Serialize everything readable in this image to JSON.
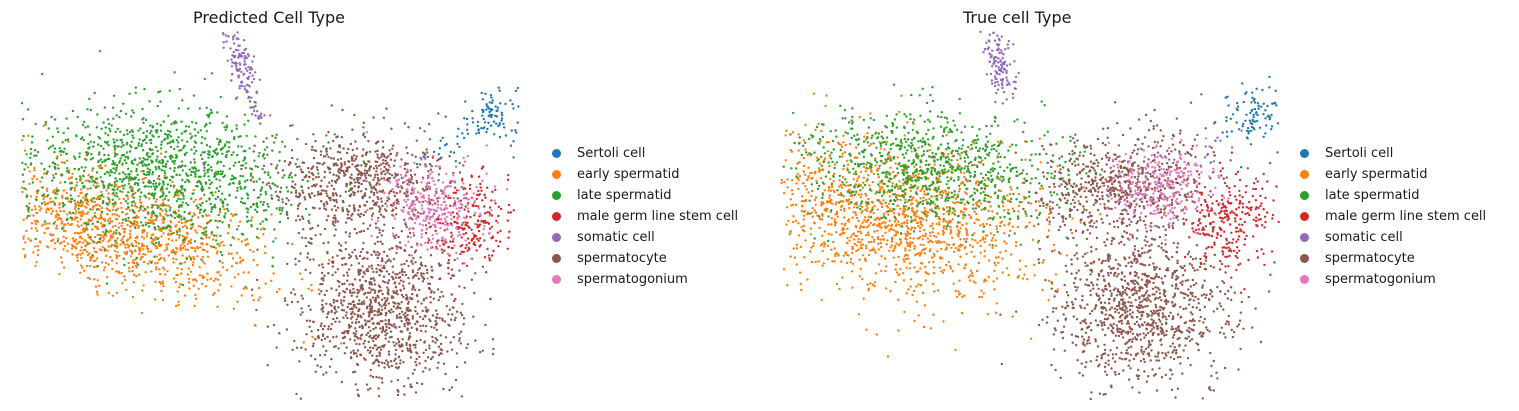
{
  "chart_data": [
    {
      "type": "scatter",
      "title": "Predicted Cell Type",
      "xlabel": "",
      "ylabel": "",
      "grid": false,
      "axes_visible": false,
      "legend_position": "right",
      "series": [
        {
          "name": "Sertoli cell",
          "color": "#1f77b4",
          "clusters": [
            {
              "cx": 9.5,
              "cy": 6.2,
              "sx": 0.38,
              "sy": 0.42,
              "n": 110,
              "rot": 0.3
            },
            {
              "cx": 8.4,
              "cy": 5.2,
              "sx": 0.35,
              "sy": 0.12,
              "n": 18,
              "rot": 0.5
            }
          ]
        },
        {
          "name": "early spermatid",
          "color": "#ff7f0e",
          "clusters": [
            {
              "cx": 2.0,
              "cy": 3.1,
              "sx": 1.55,
              "sy": 0.7,
              "n": 1200,
              "rot": -0.38
            }
          ]
        },
        {
          "name": "late spermatid",
          "color": "#2ca02c",
          "clusters": [
            {
              "cx": 2.8,
              "cy": 4.6,
              "sx": 1.55,
              "sy": 0.95,
              "n": 1300,
              "rot": -0.15
            }
          ]
        },
        {
          "name": "male germ line stem cell",
          "color": "#d62728",
          "clusters": [
            {
              "cx": 9.0,
              "cy": 3.3,
              "sx": 0.45,
              "sy": 0.6,
              "n": 210,
              "rot": 0
            }
          ]
        },
        {
          "name": "somatic cell",
          "color": "#9467bd",
          "clusters": [
            {
              "cx": 4.4,
              "cy": 7.6,
              "sx": 0.13,
              "sy": 0.48,
              "n": 120,
              "rot": 0.2
            },
            {
              "cx": 4.8,
              "cy": 6.2,
              "sx": 0.05,
              "sy": 0.05,
              "n": 8,
              "rot": 0
            }
          ]
        },
        {
          "name": "spermatocyte",
          "color": "#8c564b",
          "clusters": [
            {
              "cx": 6.8,
              "cy": 4.4,
              "sx": 0.9,
              "sy": 0.65,
              "n": 650,
              "rot": 0.1
            },
            {
              "cx": 7.2,
              "cy": 1.0,
              "sx": 0.85,
              "sy": 1.1,
              "n": 1050,
              "rot": 0
            }
          ]
        },
        {
          "name": "spermatogonium",
          "color": "#e377c2",
          "clusters": [
            {
              "cx": 8.2,
              "cy": 3.7,
              "sx": 0.55,
              "sy": 0.6,
              "n": 300,
              "rot": 0.3
            }
          ]
        }
      ],
      "xlim": [
        0,
        10
      ],
      "ylim": [
        -1.5,
        8.5
      ]
    },
    {
      "type": "scatter",
      "title": "True cell Type",
      "xlabel": "",
      "ylabel": "",
      "grid": false,
      "axes_visible": false,
      "legend_position": "right",
      "series": [
        {
          "name": "Sertoli cell",
          "color": "#1f77b4",
          "clusters": [
            {
              "cx": 9.5,
              "cy": 6.2,
              "sx": 0.38,
              "sy": 0.42,
              "n": 110,
              "rot": 0.3
            }
          ]
        },
        {
          "name": "early spermatid",
          "color": "#ff7f0e",
          "clusters": [
            {
              "cx": 2.2,
              "cy": 3.5,
              "sx": 1.6,
              "sy": 1.0,
              "n": 1500,
              "rot": -0.3
            }
          ]
        },
        {
          "name": "late spermatid",
          "color": "#2ca02c",
          "clusters": [
            {
              "cx": 3.0,
              "cy": 4.8,
              "sx": 1.3,
              "sy": 0.75,
              "n": 900,
              "rot": -0.1
            }
          ]
        },
        {
          "name": "male germ line stem cell",
          "color": "#d62728",
          "clusters": [
            {
              "cx": 9.0,
              "cy": 3.3,
              "sx": 0.5,
              "sy": 0.65,
              "n": 260,
              "rot": 0
            }
          ]
        },
        {
          "name": "somatic cell",
          "color": "#9467bd",
          "clusters": [
            {
              "cx": 4.4,
              "cy": 7.6,
              "sx": 0.13,
              "sy": 0.48,
              "n": 120,
              "rot": 0.2
            },
            {
              "cx": 8.4,
              "cy": 5.2,
              "sx": 0.35,
              "sy": 0.12,
              "n": 18,
              "rot": 0.5
            }
          ]
        },
        {
          "name": "spermatocyte",
          "color": "#8c564b",
          "clusters": [
            {
              "cx": 6.8,
              "cy": 4.3,
              "sx": 0.9,
              "sy": 0.65,
              "n": 650,
              "rot": 0.1
            },
            {
              "cx": 7.2,
              "cy": 1.0,
              "sx": 0.85,
              "sy": 1.1,
              "n": 1050,
              "rot": 0
            }
          ]
        },
        {
          "name": "spermatogonium",
          "color": "#e377c2",
          "clusters": [
            {
              "cx": 7.6,
              "cy": 4.3,
              "sx": 0.55,
              "sy": 0.5,
              "n": 280,
              "rot": 0.3
            }
          ]
        }
      ],
      "xlim": [
        0,
        10
      ],
      "ylim": [
        -1.5,
        8.5
      ]
    }
  ]
}
